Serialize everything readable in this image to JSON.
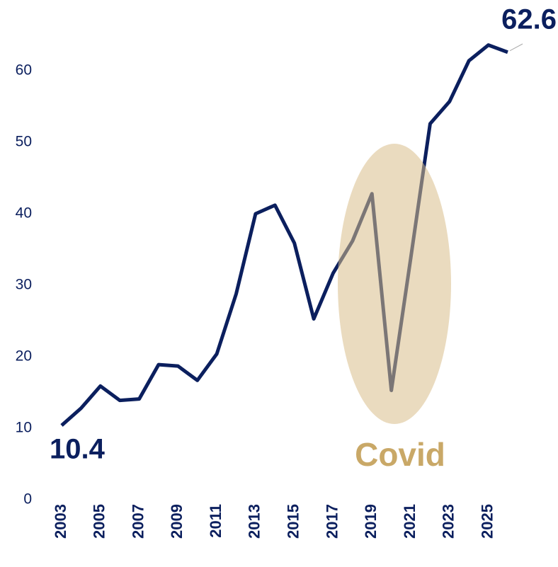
{
  "chart_data": {
    "type": "line",
    "x": [
      2003,
      2004,
      2005,
      2006,
      2007,
      2008,
      2009,
      2010,
      2011,
      2012,
      2013,
      2014,
      2015,
      2016,
      2017,
      2018,
      2019,
      2020,
      2021,
      2022,
      2023,
      2024,
      2025,
      2026
    ],
    "values": [
      10.4,
      12.8,
      15.9,
      13.9,
      14.1,
      18.9,
      18.7,
      16.7,
      20.4,
      28.8,
      40.0,
      41.2,
      35.9,
      25.3,
      31.7,
      36.2,
      42.8,
      15.3,
      33.8,
      52.6,
      55.7,
      61.4,
      63.6,
      62.6
    ],
    "color": "#0b1f5e",
    "xlim": [
      2003,
      2026
    ],
    "xticks": [
      2003,
      2005,
      2007,
      2009,
      2011,
      2013,
      2015,
      2017,
      2019,
      2021,
      2023,
      2025
    ],
    "ylim": [
      0,
      65
    ],
    "yticks": [
      0,
      10,
      20,
      30,
      40,
      50,
      60
    ],
    "grid": false,
    "annotation": "Covid"
  }
}
